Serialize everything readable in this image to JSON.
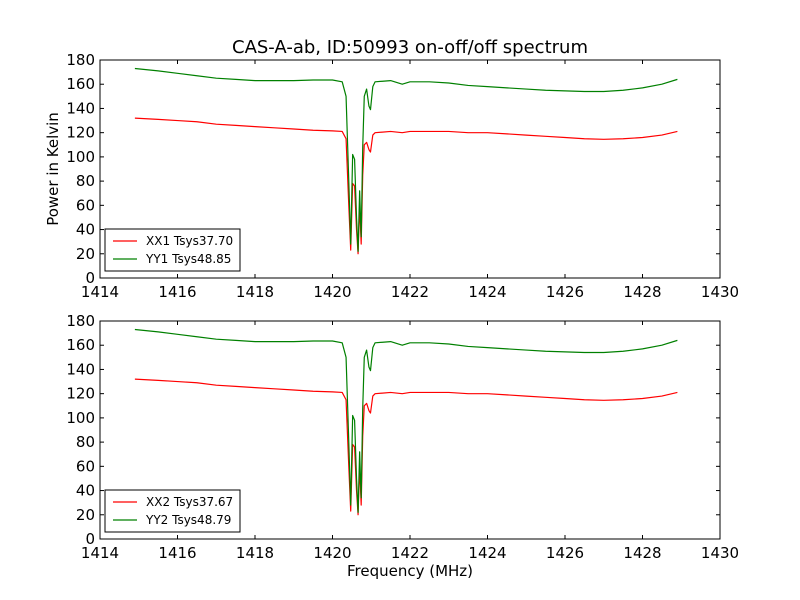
{
  "chart_data": {
    "type": "line",
    "title": "CAS-A-ab, ID:50993 on-off/off spectrum",
    "ylabel": "Power in Kelvin",
    "xlabel": "Frequency (MHz)",
    "xlim": [
      1414,
      1430
    ],
    "ylim": [
      0,
      180
    ],
    "x_ticks": [
      "1414",
      "1416",
      "1418",
      "1420",
      "1422",
      "1424",
      "1426",
      "1428",
      "1430"
    ],
    "y_ticks": [
      "0",
      "20",
      "40",
      "60",
      "80",
      "100",
      "120",
      "140",
      "160",
      "180"
    ],
    "legend_position": "lower-left",
    "panels": [
      {
        "series": [
          {
            "name": "XX1 Tsys37.70",
            "color": "#ff0000",
            "points": [
              [
                1414.9,
                132
              ],
              [
                1415.5,
                131
              ],
              [
                1416.0,
                130
              ],
              [
                1416.5,
                129
              ],
              [
                1417.0,
                127
              ],
              [
                1417.5,
                126
              ],
              [
                1418.0,
                125
              ],
              [
                1418.5,
                124
              ],
              [
                1419.0,
                123
              ],
              [
                1419.5,
                122
              ],
              [
                1420.0,
                121.5
              ],
              [
                1420.25,
                121
              ],
              [
                1420.35,
                115
              ],
              [
                1420.42,
                60
              ],
              [
                1420.47,
                23
              ],
              [
                1420.52,
                78
              ],
              [
                1420.57,
                76
              ],
              [
                1420.62,
                40
              ],
              [
                1420.66,
                20
              ],
              [
                1420.7,
                60
              ],
              [
                1420.74,
                28
              ],
              [
                1420.78,
                85
              ],
              [
                1420.82,
                110
              ],
              [
                1420.88,
                112
              ],
              [
                1420.94,
                106
              ],
              [
                1420.98,
                104
              ],
              [
                1421.04,
                118
              ],
              [
                1421.1,
                120
              ],
              [
                1421.5,
                121
              ],
              [
                1421.8,
                120
              ],
              [
                1422.0,
                121
              ],
              [
                1422.5,
                121
              ],
              [
                1423.0,
                121
              ],
              [
                1423.5,
                120
              ],
              [
                1424.0,
                120
              ],
              [
                1424.5,
                119
              ],
              [
                1425.0,
                118
              ],
              [
                1425.5,
                117
              ],
              [
                1426.0,
                116
              ],
              [
                1426.5,
                115
              ],
              [
                1427.0,
                114.5
              ],
              [
                1427.5,
                115
              ],
              [
                1428.0,
                116
              ],
              [
                1428.5,
                118
              ],
              [
                1428.9,
                121
              ]
            ]
          },
          {
            "name": "YY1 Tsys48.85",
            "color": "#008000",
            "points": [
              [
                1414.9,
                173
              ],
              [
                1415.5,
                171
              ],
              [
                1416.0,
                169
              ],
              [
                1416.5,
                167
              ],
              [
                1417.0,
                165
              ],
              [
                1417.5,
                164
              ],
              [
                1418.0,
                163
              ],
              [
                1418.5,
                163
              ],
              [
                1419.0,
                163
              ],
              [
                1419.5,
                163.5
              ],
              [
                1420.0,
                163.5
              ],
              [
                1420.25,
                162
              ],
              [
                1420.35,
                150
              ],
              [
                1420.42,
                80
              ],
              [
                1420.47,
                28
              ],
              [
                1420.52,
                102
              ],
              [
                1420.57,
                98
              ],
              [
                1420.62,
                50
              ],
              [
                1420.66,
                22
              ],
              [
                1420.7,
                72
              ],
              [
                1420.74,
                34
              ],
              [
                1420.78,
                108
              ],
              [
                1420.82,
                150
              ],
              [
                1420.88,
                156
              ],
              [
                1420.94,
                142
              ],
              [
                1420.98,
                139
              ],
              [
                1421.04,
                158
              ],
              [
                1421.1,
                162
              ],
              [
                1421.5,
                163
              ],
              [
                1421.8,
                160
              ],
              [
                1422.0,
                162
              ],
              [
                1422.5,
                162
              ],
              [
                1423.0,
                161
              ],
              [
                1423.5,
                159
              ],
              [
                1424.0,
                158
              ],
              [
                1424.5,
                157
              ],
              [
                1425.0,
                156
              ],
              [
                1425.5,
                155
              ],
              [
                1426.0,
                154.5
              ],
              [
                1426.5,
                154
              ],
              [
                1427.0,
                154
              ],
              [
                1427.5,
                155
              ],
              [
                1428.0,
                157
              ],
              [
                1428.5,
                160
              ],
              [
                1428.9,
                164
              ]
            ]
          }
        ]
      },
      {
        "series": [
          {
            "name": "XX2 Tsys37.67",
            "color": "#ff0000",
            "points": [
              [
                1414.9,
                132
              ],
              [
                1415.5,
                131
              ],
              [
                1416.0,
                130
              ],
              [
                1416.5,
                129
              ],
              [
                1417.0,
                127
              ],
              [
                1417.5,
                126
              ],
              [
                1418.0,
                125
              ],
              [
                1418.5,
                124
              ],
              [
                1419.0,
                123
              ],
              [
                1419.5,
                122
              ],
              [
                1420.0,
                121.5
              ],
              [
                1420.25,
                121
              ],
              [
                1420.35,
                115
              ],
              [
                1420.42,
                60
              ],
              [
                1420.47,
                23
              ],
              [
                1420.52,
                78
              ],
              [
                1420.57,
                76
              ],
              [
                1420.62,
                40
              ],
              [
                1420.66,
                20
              ],
              [
                1420.7,
                60
              ],
              [
                1420.74,
                28
              ],
              [
                1420.78,
                85
              ],
              [
                1420.82,
                110
              ],
              [
                1420.88,
                112
              ],
              [
                1420.94,
                106
              ],
              [
                1420.98,
                104
              ],
              [
                1421.04,
                118
              ],
              [
                1421.1,
                120
              ],
              [
                1421.5,
                121
              ],
              [
                1421.8,
                120
              ],
              [
                1422.0,
                121
              ],
              [
                1422.5,
                121
              ],
              [
                1423.0,
                121
              ],
              [
                1423.5,
                120
              ],
              [
                1424.0,
                120
              ],
              [
                1424.5,
                119
              ],
              [
                1425.0,
                118
              ],
              [
                1425.5,
                117
              ],
              [
                1426.0,
                116
              ],
              [
                1426.5,
                115
              ],
              [
                1427.0,
                114.5
              ],
              [
                1427.5,
                115
              ],
              [
                1428.0,
                116
              ],
              [
                1428.5,
                118
              ],
              [
                1428.9,
                121
              ]
            ]
          },
          {
            "name": "YY2 Tsys48.79",
            "color": "#008000",
            "points": [
              [
                1414.9,
                173
              ],
              [
                1415.5,
                171
              ],
              [
                1416.0,
                169
              ],
              [
                1416.5,
                167
              ],
              [
                1417.0,
                165
              ],
              [
                1417.5,
                164
              ],
              [
                1418.0,
                163
              ],
              [
                1418.5,
                163
              ],
              [
                1419.0,
                163
              ],
              [
                1419.5,
                163.5
              ],
              [
                1420.0,
                163.5
              ],
              [
                1420.25,
                162
              ],
              [
                1420.35,
                150
              ],
              [
                1420.42,
                80
              ],
              [
                1420.47,
                28
              ],
              [
                1420.52,
                102
              ],
              [
                1420.57,
                98
              ],
              [
                1420.62,
                50
              ],
              [
                1420.66,
                22
              ],
              [
                1420.7,
                72
              ],
              [
                1420.74,
                34
              ],
              [
                1420.78,
                108
              ],
              [
                1420.82,
                150
              ],
              [
                1420.88,
                156
              ],
              [
                1420.94,
                142
              ],
              [
                1420.98,
                139
              ],
              [
                1421.04,
                158
              ],
              [
                1421.1,
                162
              ],
              [
                1421.5,
                163
              ],
              [
                1421.8,
                160
              ],
              [
                1422.0,
                162
              ],
              [
                1422.5,
                162
              ],
              [
                1423.0,
                161
              ],
              [
                1423.5,
                159
              ],
              [
                1424.0,
                158
              ],
              [
                1424.5,
                157
              ],
              [
                1425.0,
                156
              ],
              [
                1425.5,
                155
              ],
              [
                1426.0,
                154.5
              ],
              [
                1426.5,
                154
              ],
              [
                1427.0,
                154
              ],
              [
                1427.5,
                155
              ],
              [
                1428.0,
                157
              ],
              [
                1428.5,
                160
              ],
              [
                1428.9,
                164
              ]
            ]
          }
        ]
      }
    ]
  }
}
